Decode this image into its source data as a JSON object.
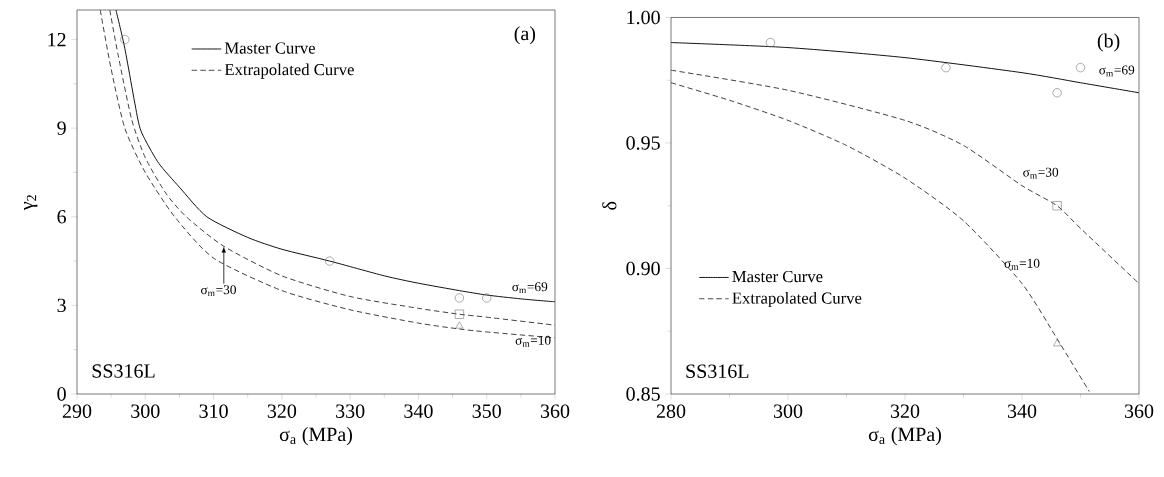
{
  "chart_data": [
    {
      "type": "line",
      "xlabel": "σ$_{a}$ (MPa)",
      "ylabel": "γ$_{2}$",
      "xlim": [
        290,
        360
      ],
      "ylim": [
        0,
        13
      ],
      "xticks": [
        290,
        300,
        310,
        320,
        330,
        340,
        350,
        360
      ],
      "yticks": [
        0,
        3,
        6,
        9,
        12
      ],
      "legend": "top",
      "grid": false,
      "annotations": [
        "(a)",
        "SS316L",
        {
          "text": "σ$_{m}$=69",
          "x": 355,
          "y": 3.22
        },
        {
          "text": "σ$_{m}$=30",
          "x": 311.5,
          "y": 5.0
        },
        {
          "text": "σ$_{m}$=10",
          "x": 350,
          "y": 2.1
        }
      ],
      "series": [
        {
          "name": "Master Curve",
          "line_style": "solid",
          "marker": "none",
          "color": "#000000",
          "x": [
            295.7,
            297,
            299,
            300,
            302,
            305,
            309,
            315,
            320,
            327,
            335,
            340,
            346,
            350,
            355,
            360
          ],
          "values": [
            13,
            11.7,
            9.2,
            8.6,
            7.8,
            7.0,
            6.0,
            5.3,
            4.9,
            4.5,
            4.0,
            3.75,
            3.5,
            3.35,
            3.22,
            3.12
          ]
        },
        {
          "name": "Extrapolated Curve",
          "line_style": "dashed",
          "marker": "none",
          "color": "#333333",
          "x": [
            294.8,
            296,
            298,
            300,
            303,
            306,
            311.5,
            320,
            330,
            340,
            346,
            350,
            360
          ],
          "values": [
            13,
            11.5,
            9.3,
            8.0,
            6.8,
            6.0,
            5.0,
            4.0,
            3.3,
            2.9,
            2.7,
            2.6,
            2.33
          ]
        },
        {
          "line_style": "dashed",
          "marker": "none",
          "color": "#333333",
          "x": [
            293.4,
            295,
            297,
            300,
            304.3,
            310,
            320,
            330,
            340,
            346,
            350,
            360
          ],
          "values": [
            13,
            11,
            9.0,
            7.5,
            6.0,
            4.6,
            3.5,
            2.85,
            2.4,
            2.2,
            2.1,
            1.9
          ]
        },
        {
          "type": "scatter",
          "marker": "circle",
          "color": "#666666",
          "x": [
            297,
            327,
            346,
            350
          ],
          "values": [
            12,
            4.5,
            3.25,
            3.25
          ]
        },
        {
          "type": "scatter",
          "marker": "square",
          "color": "#666666",
          "x": [
            346
          ],
          "values": [
            2.7
          ]
        },
        {
          "type": "scatter",
          "marker": "triangle",
          "color": "#666666",
          "x": [
            346
          ],
          "values": [
            2.3
          ]
        }
      ]
    },
    {
      "type": "line",
      "xlabel": "σ$_{a}$ (MPa)",
      "ylabel": "δ",
      "xlim": [
        280,
        360
      ],
      "ylim": [
        0.85,
        1.0
      ],
      "xticks": [
        280,
        300,
        320,
        340,
        360
      ],
      "yticks": [
        0.85,
        {
          "value": 0.9,
          "label": "0.90"
        },
        0.95,
        {
          "value": 1.0,
          "label": "1.00"
        }
      ],
      "legend": "bottom left",
      "grid": false,
      "annotations": [
        "(b)",
        "SS316L",
        {
          "text": "σ$_{m}$=69",
          "x": 350,
          "y": 0.974
        },
        {
          "text": "σ$_{m}$=30",
          "x": 340,
          "y": 0.933
        },
        {
          "text": "σ$_{m}$=10",
          "x": 340,
          "y": 0.894
        }
      ],
      "series": [
        {
          "name": "Master Curve",
          "line_style": "solid",
          "marker": "none",
          "color": "#000000",
          "x": [
            280,
            300,
            320,
            340,
            350,
            360
          ],
          "values": [
            0.99,
            0.988,
            0.984,
            0.978,
            0.974,
            0.97
          ]
        },
        {
          "name": "Extrapolated Curve",
          "line_style": "dashed",
          "marker": "none",
          "color": "#333333",
          "x": [
            280,
            300,
            320,
            330,
            340,
            346,
            350,
            360
          ],
          "values": [
            0.979,
            0.971,
            0.959,
            0.949,
            0.933,
            0.925,
            0.916,
            0.894
          ]
        },
        {
          "line_style": "dashed",
          "marker": "none",
          "color": "#333333",
          "x": [
            280,
            290,
            300,
            310,
            320,
            330,
            340,
            346,
            351.5
          ],
          "values": [
            0.974,
            0.967,
            0.959,
            0.949,
            0.936,
            0.919,
            0.894,
            0.872,
            0.851
          ]
        },
        {
          "type": "scatter",
          "marker": "circle",
          "color": "#666666",
          "x": [
            297,
            327,
            346,
            350
          ],
          "values": [
            0.99,
            0.98,
            0.97,
            0.98
          ]
        },
        {
          "type": "scatter",
          "marker": "square",
          "color": "#666666",
          "x": [
            346
          ],
          "values": [
            0.925
          ]
        },
        {
          "type": "scatter",
          "marker": "triangle",
          "color": "#666666",
          "x": [
            346
          ],
          "values": [
            0.87
          ]
        }
      ]
    }
  ]
}
